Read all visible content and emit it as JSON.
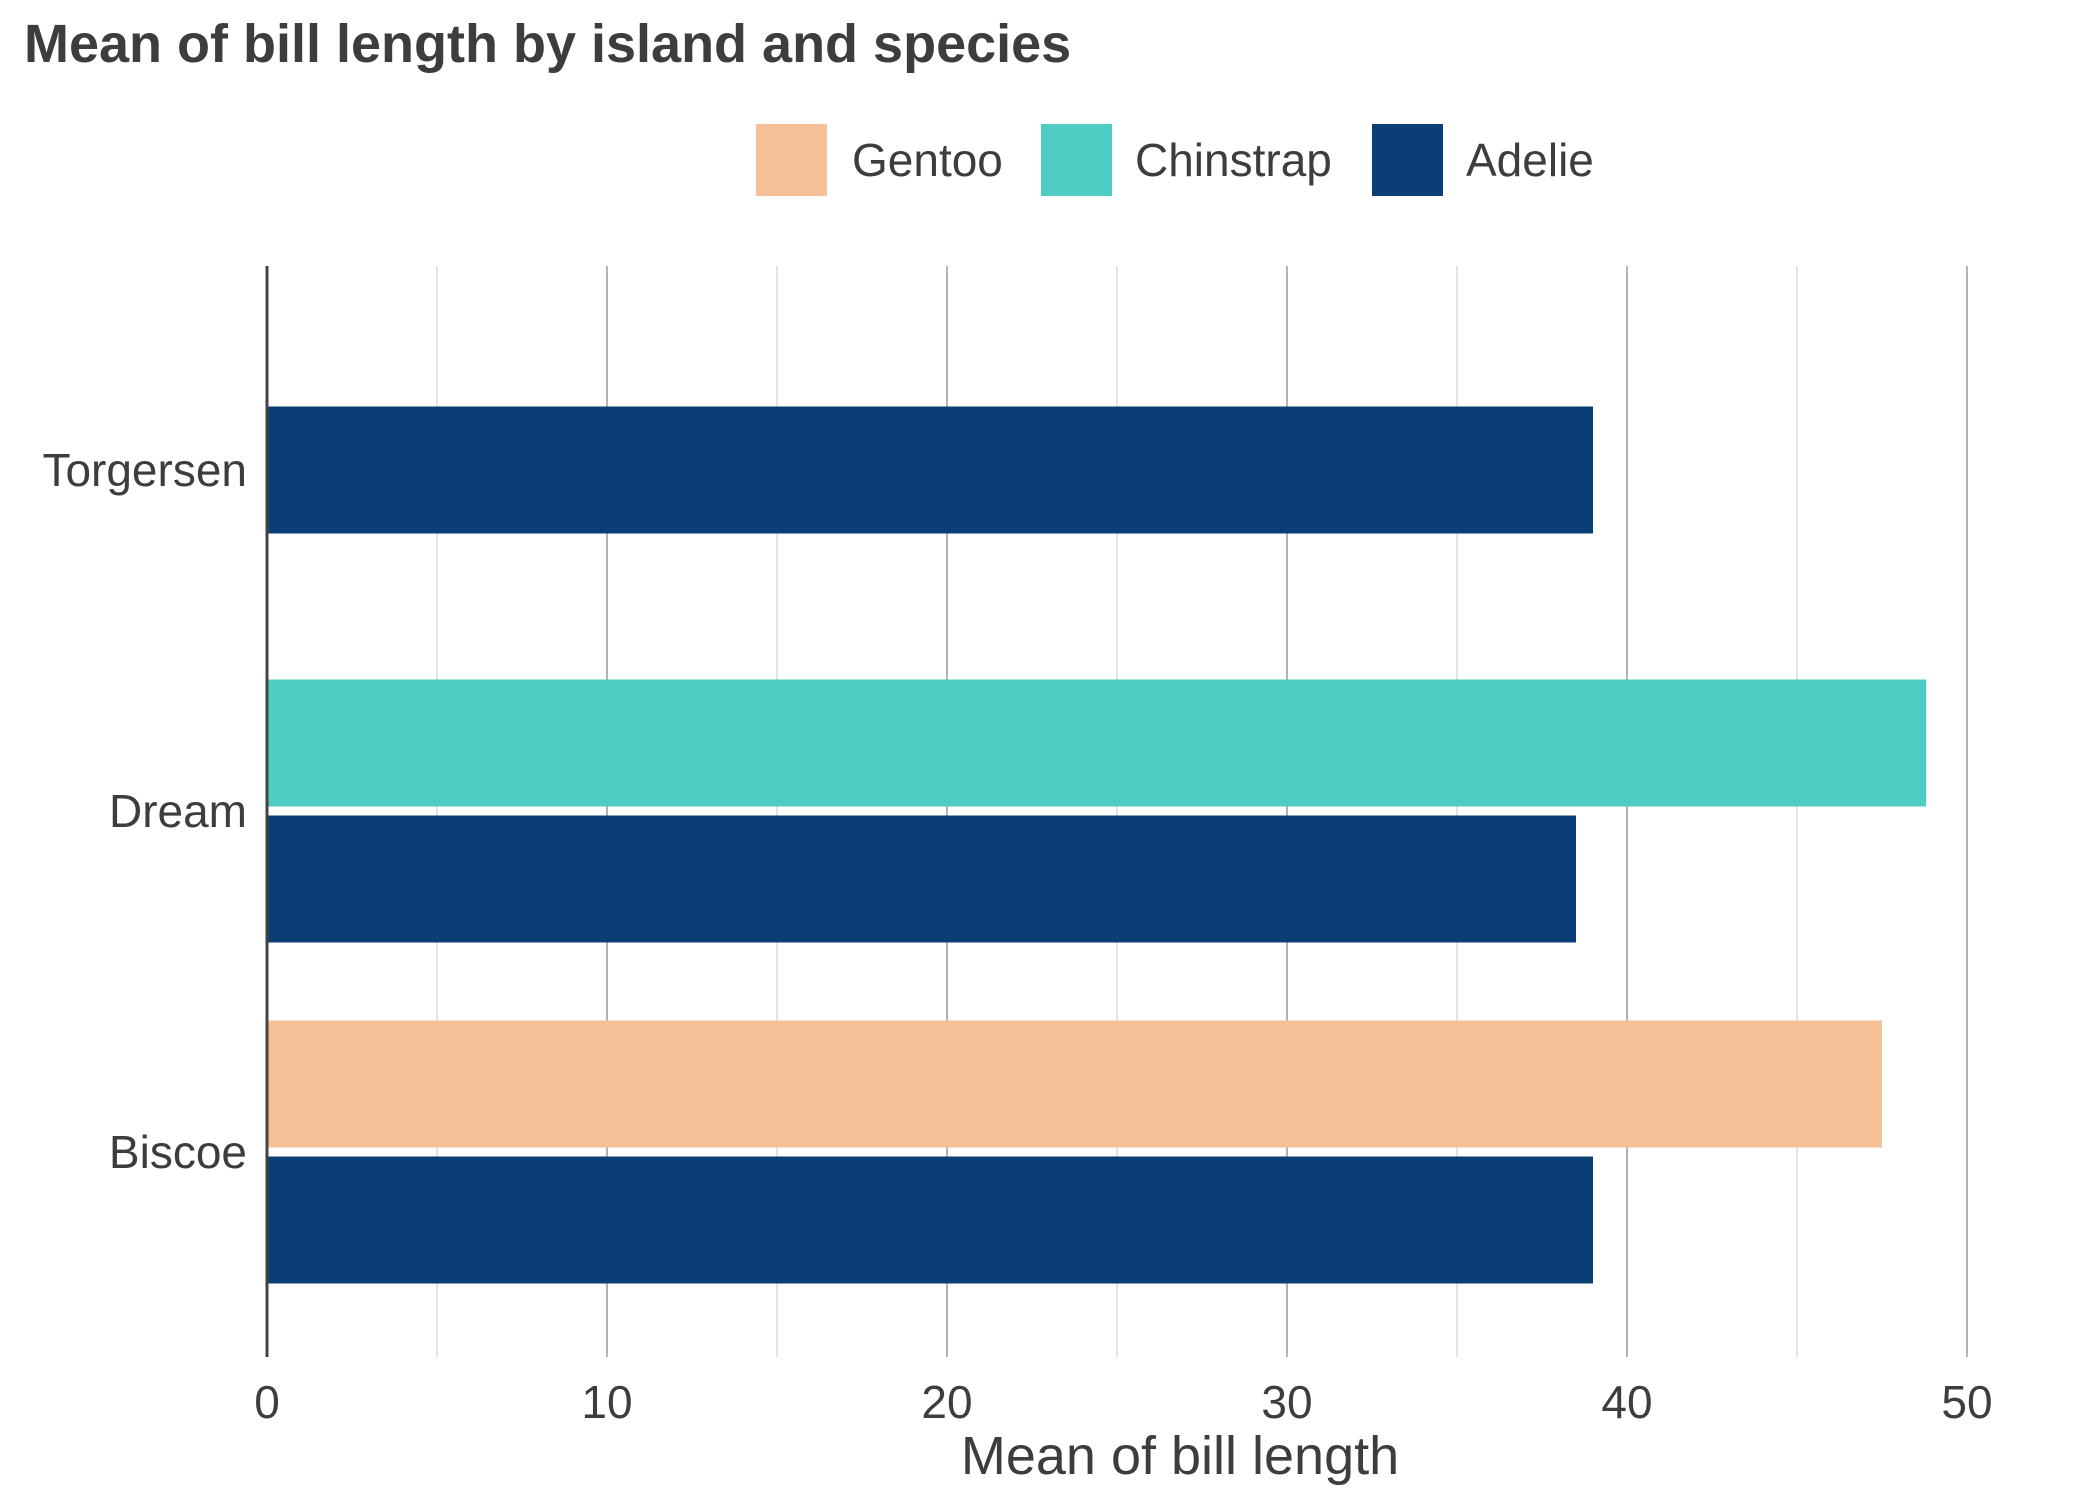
{
  "chart_data": {
    "type": "bar",
    "orientation": "horizontal",
    "title": "Mean of bill length by island and species",
    "xlabel": "Mean of bill length",
    "ylabel": "",
    "xlim": [
      0,
      52.5
    ],
    "x_ticks": [
      0,
      10,
      20,
      30,
      40,
      50
    ],
    "grid": true,
    "legend_position": "top",
    "categories": [
      "Torgersen",
      "Dream",
      "Biscoe"
    ],
    "series": [
      {
        "name": "Gentoo",
        "color": "#F4C197",
        "values": [
          null,
          null,
          47.5
        ]
      },
      {
        "name": "Chinstrap",
        "color": "#4ECDC4",
        "values": [
          null,
          48.8,
          null
        ]
      },
      {
        "name": "Adelie",
        "color": "#0B3D77",
        "values": [
          39.0,
          38.5,
          39.0
        ]
      }
    ]
  }
}
